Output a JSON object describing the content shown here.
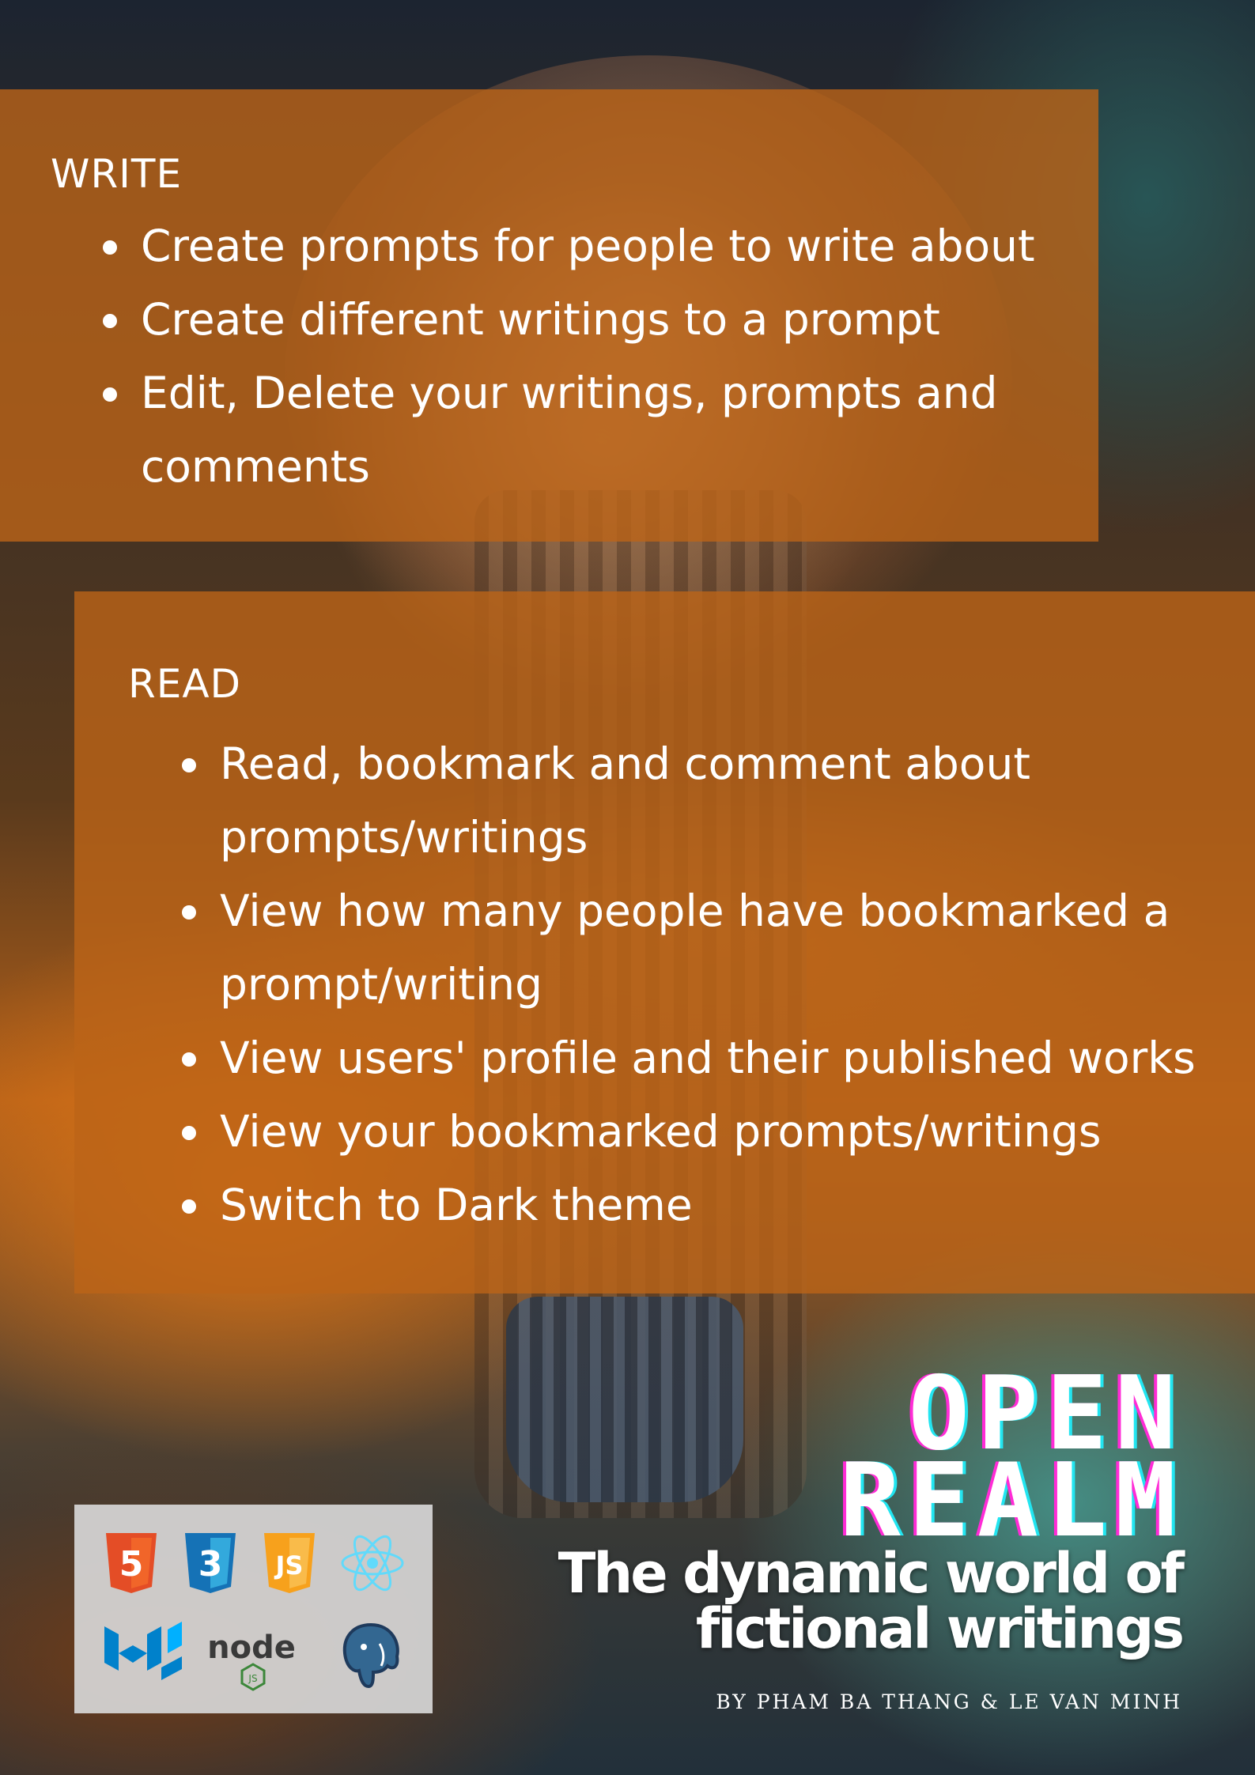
{
  "write": {
    "heading": "WRITE",
    "items": [
      "Create prompts for people to write about",
      "Create different writings to a prompt",
      "Edit, Delete your writings, prompts and comments"
    ]
  },
  "read": {
    "heading": "READ",
    "items": [
      "Read, bookmark and comment about prompts/writings",
      "View how many people have bookmarked a prompt/writing",
      "View users' profile and their published works",
      "View your bookmarked prompts/writings",
      "Switch to Dark theme"
    ]
  },
  "title": {
    "line1": "OPEN",
    "line2": "REALM",
    "tagline": "The dynamic world of fictional writings",
    "byline": "BY PHAM BA THANG & LE VAN MINH"
  },
  "logos": {
    "html5_glyph": "5",
    "css3_glyph": "3",
    "js_glyph": "JS",
    "node_text": "node",
    "node_badge": "JS",
    "icons": [
      "html5-icon",
      "css3-icon",
      "javascript-icon",
      "react-icon",
      "material-ui-icon",
      "nodejs-icon",
      "postgresql-icon"
    ]
  },
  "colors": {
    "panel": "#bc6418",
    "accent_magenta": "#ff2bd6",
    "accent_cyan": "#22e5f0",
    "html5": "#e44d26",
    "css3": "#1572b6",
    "js": "#f7a11c",
    "react": "#61dafb",
    "mui": "#0081cb",
    "node": "#3c873a",
    "postgres": "#336791"
  }
}
